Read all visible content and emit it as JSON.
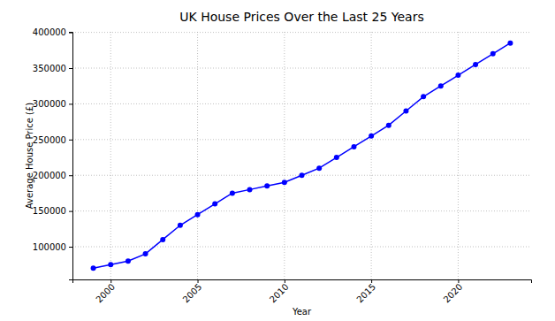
{
  "chart_data": {
    "type": "line",
    "title": "UK House Prices Over the Last 25 Years",
    "x_label": "Year",
    "y_label": "Average House Price (£)",
    "x": [
      1999,
      2000,
      2001,
      2002,
      2003,
      2004,
      2005,
      2006,
      2007,
      2008,
      2009,
      2010,
      2011,
      2012,
      2013,
      2014,
      2015,
      2016,
      2017,
      2018,
      2019,
      2020,
      2021,
      2022,
      2023
    ],
    "values": [
      70000,
      75000,
      80000,
      90000,
      110000,
      130000,
      145000,
      160000,
      175000,
      180000,
      185000,
      190000,
      200000,
      210000,
      225000,
      240000,
      255000,
      270000,
      290000,
      310000,
      325000,
      340000,
      355000,
      370000,
      385000
    ],
    "color": "#0000ff",
    "marker": "circle",
    "line_style": "solid",
    "xlim": [
      1997.8,
      2024.2
    ],
    "xticks": [
      2000,
      2005,
      2010,
      2015,
      2020
    ],
    "ylim": [
      54250,
      400750
    ],
    "yticks": [
      100000,
      150000,
      200000,
      250000,
      300000,
      350000,
      400000
    ],
    "grid": true
  }
}
